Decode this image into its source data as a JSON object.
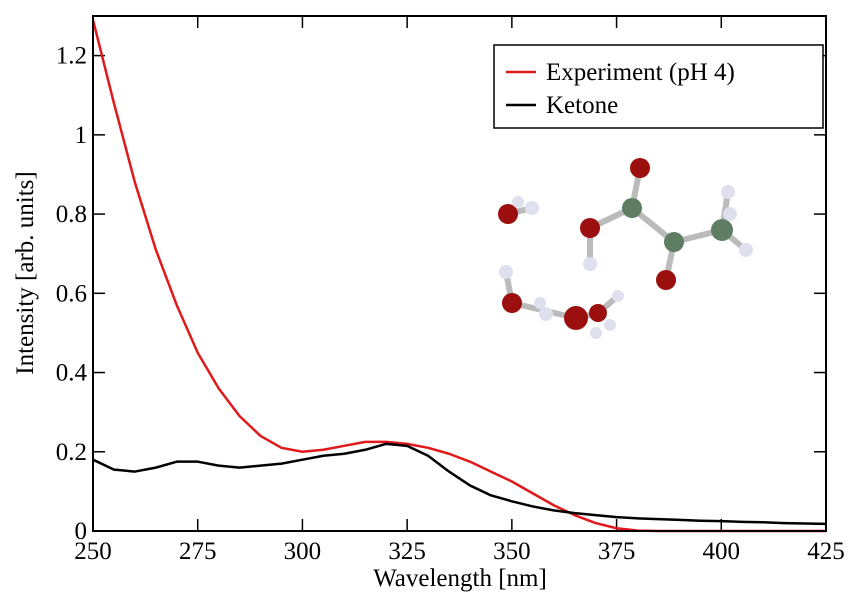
{
  "chart_data": {
    "type": "line",
    "xlabel": "Wavelength [nm]",
    "ylabel": "Intensity [arb. units]",
    "x": [
      250,
      255,
      260,
      265,
      270,
      275,
      280,
      285,
      290,
      295,
      300,
      305,
      310,
      315,
      320,
      325,
      330,
      335,
      340,
      345,
      350,
      355,
      360,
      365,
      370,
      375,
      380,
      385,
      390,
      395,
      400,
      405,
      410,
      415,
      420,
      425
    ],
    "series": [
      {
        "name": "Experiment (pH 4)",
        "color": "#e0191b",
        "values": [
          1.29,
          1.08,
          0.88,
          0.71,
          0.57,
          0.45,
          0.36,
          0.29,
          0.24,
          0.21,
          0.2,
          0.205,
          0.215,
          0.225,
          0.225,
          0.22,
          0.21,
          0.195,
          0.175,
          0.15,
          0.125,
          0.095,
          0.065,
          0.04,
          0.02,
          0.007,
          0.001,
          0,
          0,
          0,
          0,
          0,
          0,
          0,
          0,
          0
        ]
      },
      {
        "name": "Ketone",
        "color": "#000000",
        "values": [
          0.18,
          0.155,
          0.15,
          0.16,
          0.175,
          0.175,
          0.165,
          0.16,
          0.165,
          0.17,
          0.18,
          0.19,
          0.195,
          0.205,
          0.22,
          0.215,
          0.19,
          0.15,
          0.115,
          0.09,
          0.075,
          0.062,
          0.052,
          0.045,
          0.04,
          0.035,
          0.032,
          0.03,
          0.028,
          0.026,
          0.025,
          0.023,
          0.022,
          0.02,
          0.019,
          0.018
        ]
      }
    ],
    "xlim": [
      250,
      425
    ],
    "xticks": [
      250,
      275,
      300,
      325,
      350,
      375,
      400,
      425
    ],
    "ylim": [
      0,
      1.3
    ],
    "yticks": [
      0,
      0.2,
      0.4,
      0.6,
      0.8,
      1,
      1.2
    ],
    "legend": "upper-right"
  }
}
